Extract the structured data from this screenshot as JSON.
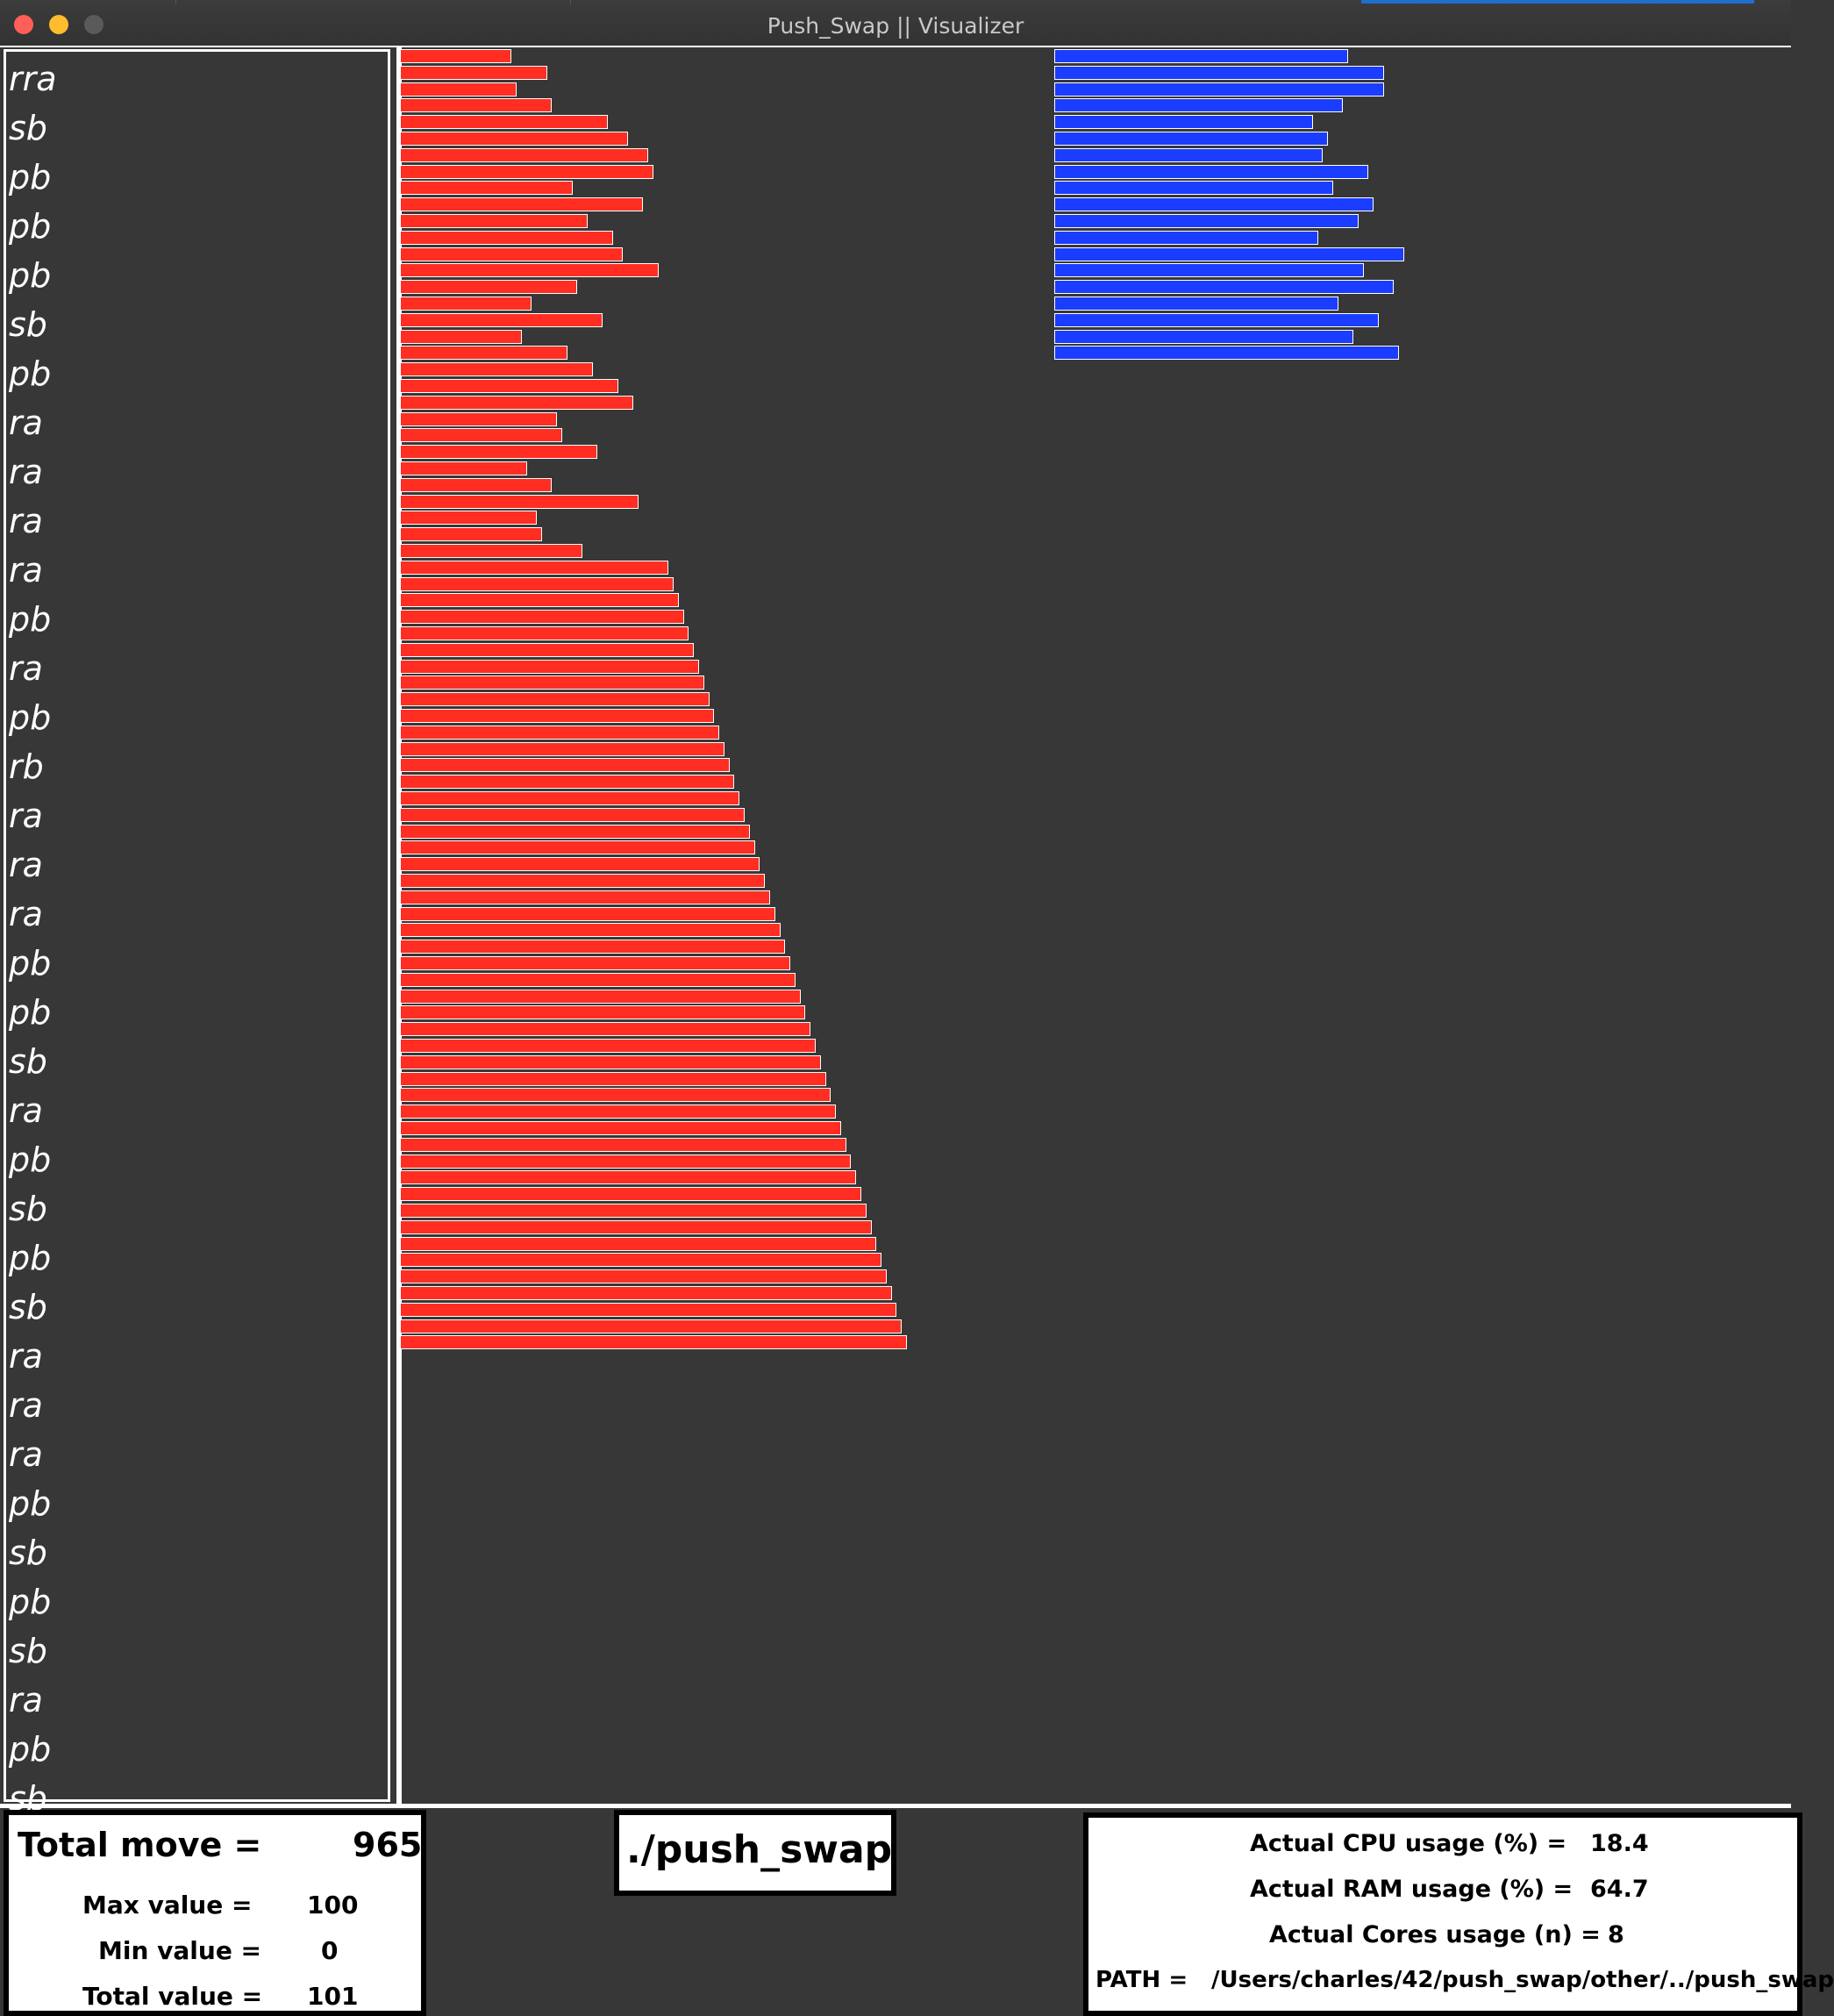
{
  "window": {
    "title": "Push_Swap || Visualizer"
  },
  "colors": {
    "stack_a": "#ff2d22",
    "stack_b": "#1a3dff",
    "background": "#373737"
  },
  "operations": [
    "rra",
    "sb",
    "pb",
    "pb",
    "pb",
    "sb",
    "pb",
    "ra",
    "ra",
    "ra",
    "ra",
    "pb",
    "ra",
    "pb",
    "rb",
    "ra",
    "ra",
    "ra",
    "pb",
    "pb",
    "sb",
    "ra",
    "pb",
    "sb",
    "pb",
    "sb",
    "ra",
    "ra",
    "ra",
    "pb",
    "sb",
    "pb",
    "sb",
    "ra",
    "pb",
    "sb"
  ],
  "stack_a": {
    "values": [
      22,
      29,
      23,
      30,
      41,
      45,
      49,
      50,
      34,
      48,
      37,
      42,
      44,
      51,
      35,
      26,
      40,
      24,
      33,
      38,
      43,
      46,
      31,
      32,
      39,
      25,
      30,
      47,
      27,
      28,
      36,
      53,
      54,
      55,
      56,
      57,
      58,
      59,
      60,
      61,
      62,
      63,
      64,
      65,
      66,
      67,
      68,
      69,
      70,
      71,
      72,
      73,
      74,
      75,
      76,
      77,
      78,
      79,
      80,
      81,
      82,
      83,
      84,
      85,
      86,
      87,
      88,
      89,
      90,
      91,
      92,
      93,
      94,
      95,
      96,
      97,
      98,
      99,
      100
    ]
  },
  "stack_b": {
    "values": [
      58,
      65,
      65,
      57,
      51,
      54,
      53,
      62,
      55,
      63,
      60,
      52,
      69,
      61,
      67,
      56,
      64,
      59,
      68
    ]
  },
  "stats": {
    "total_move_label": "Total move =",
    "total_move": "965",
    "max_label": "Max value =",
    "max": "100",
    "min_label": "Min value =",
    "min": "0",
    "total_value_label": "Total value =",
    "total_value": "101"
  },
  "command": "./push_swap",
  "system": {
    "cpu_label": "Actual CPU usage (%) =",
    "cpu": "18.4",
    "ram_label": "Actual RAM usage (%) =",
    "ram": "64.7",
    "cores_label": "Actual Cores usage (n) =",
    "cores": "8",
    "path_label": "PATH =",
    "path": "/Users/charles/42/push_swap/other/../push_swap"
  }
}
